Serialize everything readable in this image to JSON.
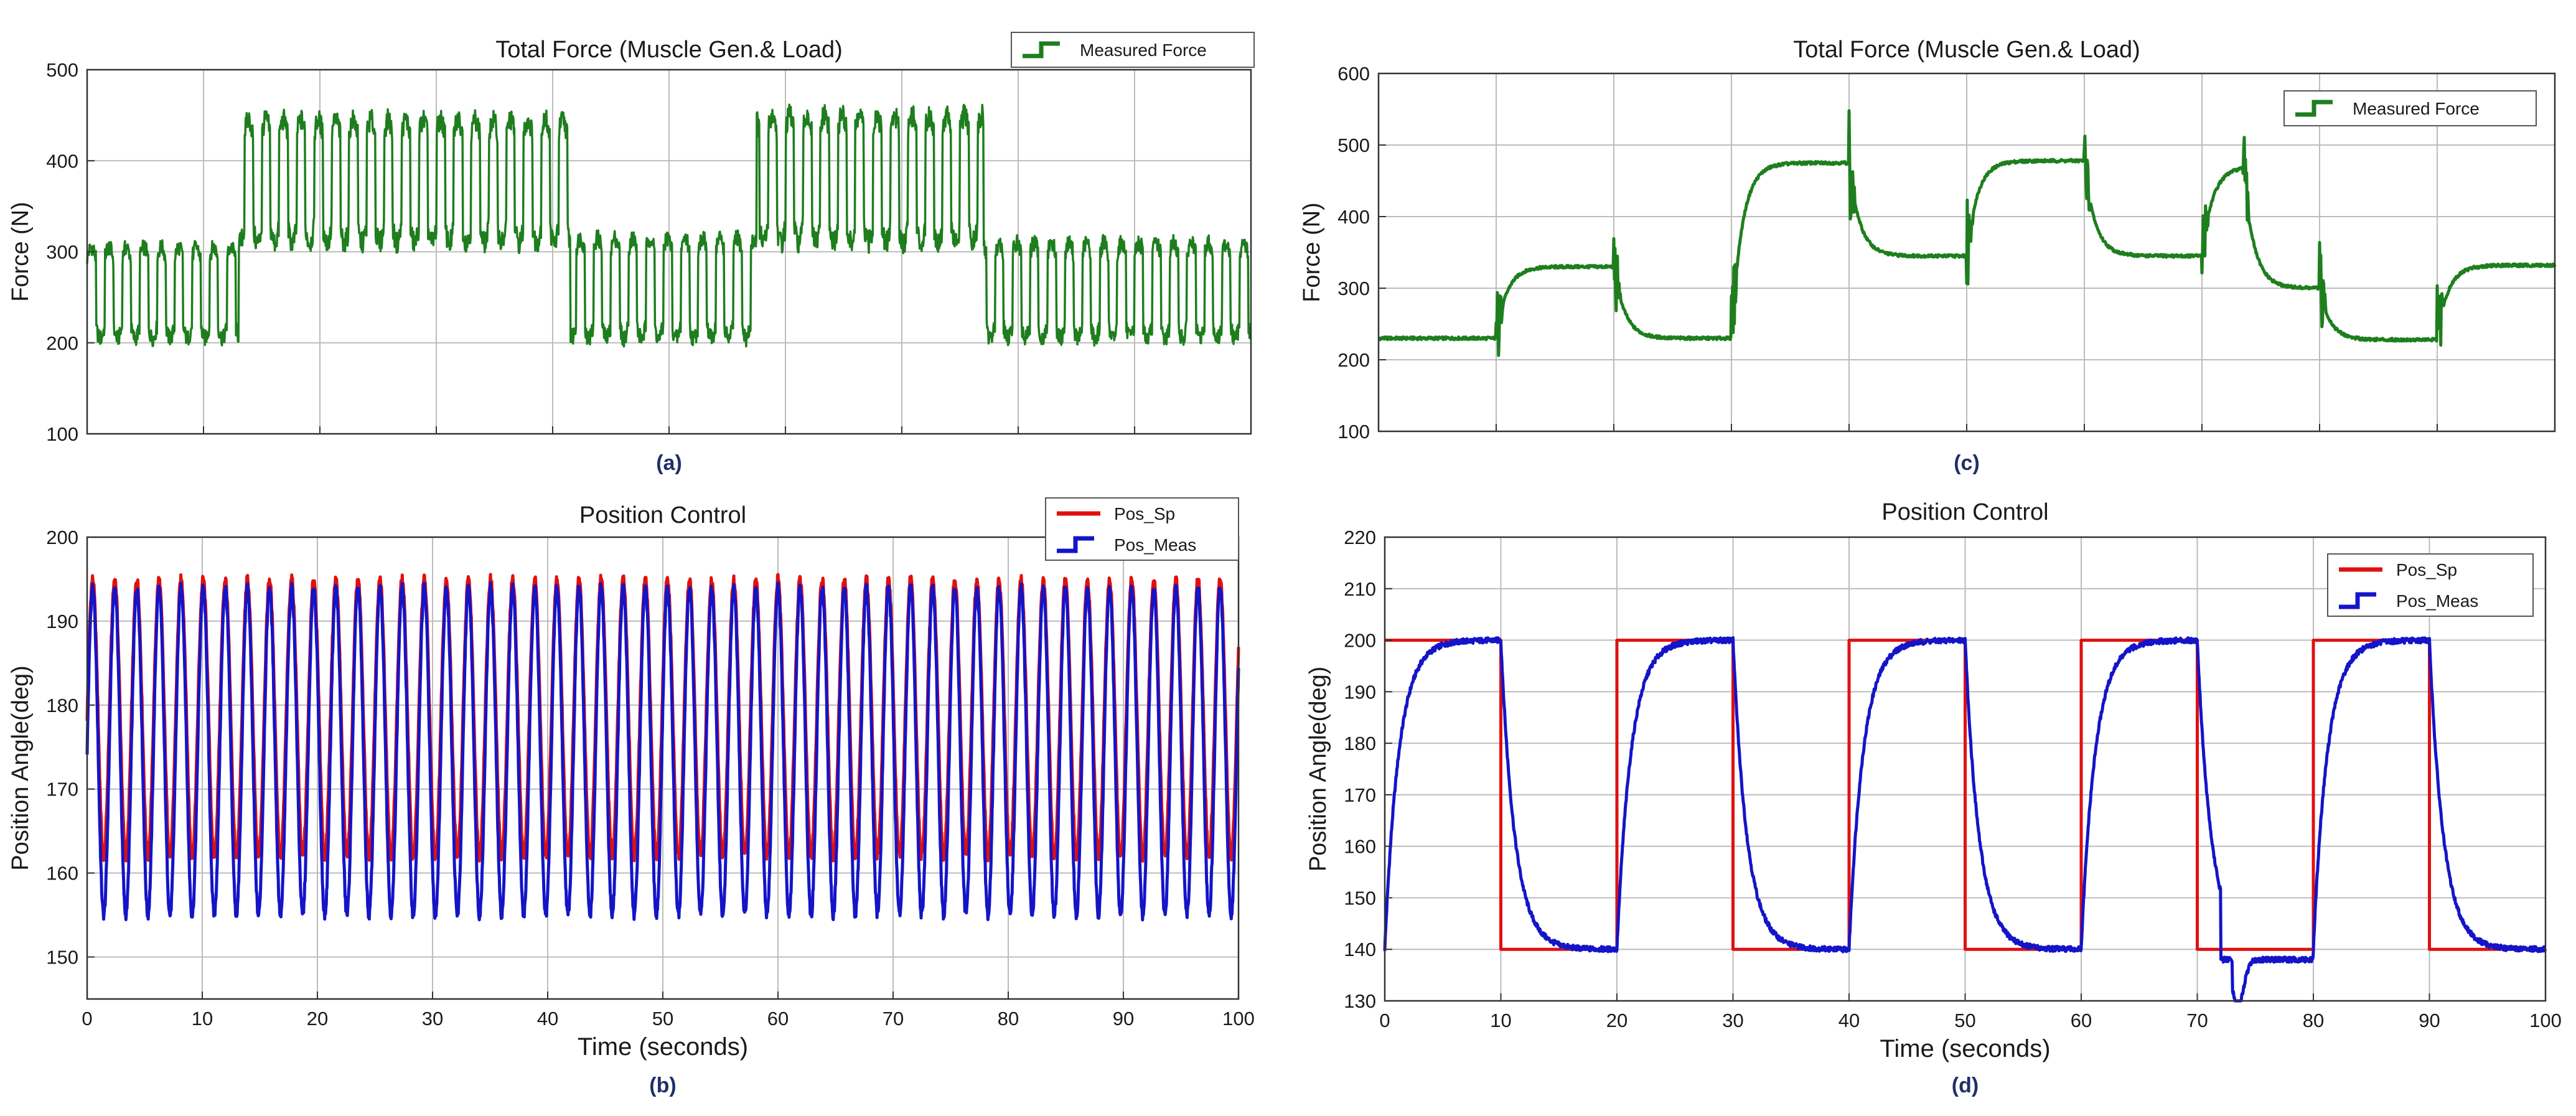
{
  "colors": {
    "force": "#1e7e1e",
    "setpoint": "#e01010",
    "measured": "#1414c8",
    "grid": "#bcbcbc",
    "axis": "#333333",
    "caption": "#1f2f6b"
  },
  "chart_data": [
    {
      "id": "a",
      "caption": "(a)",
      "type": "line",
      "title": "Total Force (Muscle Gen.& Load)",
      "xlabel": "",
      "ylabel": "Force (N)",
      "xlim": [
        0,
        100
      ],
      "ylim": [
        100,
        500
      ],
      "xticks": [
        0,
        10,
        20,
        30,
        40,
        50,
        60,
        70,
        80,
        90,
        100
      ],
      "yticks": [
        100,
        200,
        300,
        400,
        500
      ],
      "show_xtick_labels": false,
      "grid": true,
      "legend": "top-right",
      "series": [
        {
          "name": "Measured Force",
          "color_key": "force",
          "kind": "oscillating_segments",
          "osc_period": 1.5,
          "segments": [
            {
              "x0": 0,
              "x1": 13,
              "lo": 205,
              "hi": 305
            },
            {
              "x0": 13,
              "x1": 41.5,
              "lo": 310,
              "hi": 445
            },
            {
              "x0": 41.5,
              "x1": 57.5,
              "lo": 205,
              "hi": 315
            },
            {
              "x0": 57.5,
              "x1": 77,
              "lo": 310,
              "hi": 450
            },
            {
              "x0": 77,
              "x1": 100,
              "lo": 205,
              "hi": 310
            }
          ]
        }
      ]
    },
    {
      "id": "b",
      "caption": "(b)",
      "type": "line",
      "title": "Position Control",
      "xlabel": "Time (seconds)",
      "ylabel": "Position Angle(deg)",
      "xlim": [
        0,
        100
      ],
      "ylim": [
        145,
        200
      ],
      "xticks": [
        0,
        10,
        20,
        30,
        40,
        50,
        60,
        70,
        80,
        90,
        100
      ],
      "yticks": [
        150,
        160,
        170,
        180,
        190,
        200
      ],
      "show_xtick_labels": true,
      "grid": true,
      "legend": "top-right",
      "series": [
        {
          "name": "Pos_Sp",
          "color_key": "setpoint",
          "kind": "sine",
          "period": 1.92,
          "lo": 162,
          "hi": 195
        },
        {
          "name": "Pos_Meas",
          "color_key": "measured",
          "kind": "sine",
          "period": 1.92,
          "lo": 155,
          "hi": 194
        }
      ]
    },
    {
      "id": "c",
      "caption": "(c)",
      "type": "line",
      "title": "Total Force (Muscle Gen.& Load)",
      "xlabel": "",
      "ylabel": "Force (N)",
      "xlim": [
        0,
        100
      ],
      "ylim": [
        100,
        600
      ],
      "xticks": [
        0,
        10,
        20,
        30,
        40,
        50,
        60,
        70,
        80,
        90,
        100
      ],
      "yticks": [
        100,
        200,
        300,
        400,
        500,
        600
      ],
      "show_xtick_labels": false,
      "grid": true,
      "legend": "top-right",
      "series": [
        {
          "name": "Measured Force",
          "color_key": "force",
          "kind": "step_force",
          "breakpoints": [
            {
              "x": 0,
              "from": 230,
              "to": 230
            },
            {
              "x": 10,
              "from": 230,
              "to": 330
            },
            {
              "x": 20,
              "from": 335,
              "to": 230
            },
            {
              "x": 30,
              "from": 230,
              "to": 475
            },
            {
              "x": 40,
              "from": 475,
              "to": 345
            },
            {
              "x": 50,
              "from": 345,
              "to": 478
            },
            {
              "x": 60,
              "from": 478,
              "to": 345
            },
            {
              "x": 70,
              "from": 345,
              "to": 470
            },
            {
              "x": 73.5,
              "from": 470,
              "to": 300
            },
            {
              "x": 80,
              "from": 300,
              "to": 228
            },
            {
              "x": 90,
              "from": 228,
              "to": 332
            }
          ]
        }
      ]
    },
    {
      "id": "d",
      "caption": "(d)",
      "type": "line",
      "title": "Position Control",
      "xlabel": "Time (seconds)",
      "ylabel": "Position Angle(deg)",
      "xlim": [
        0,
        100
      ],
      "ylim": [
        130,
        220
      ],
      "xticks": [
        0,
        10,
        20,
        30,
        40,
        50,
        60,
        70,
        80,
        90,
        100
      ],
      "yticks": [
        130,
        140,
        150,
        160,
        170,
        180,
        190,
        200,
        210,
        220
      ],
      "show_xtick_labels": true,
      "grid": true,
      "legend": "top-right",
      "series": [
        {
          "name": "Pos_Sp",
          "color_key": "setpoint",
          "kind": "square",
          "period": 20,
          "lo": 140,
          "hi": 200
        },
        {
          "name": "Pos_Meas",
          "color_key": "measured",
          "kind": "square_response",
          "period": 20,
          "lo": 140,
          "hi": 200,
          "tau": 1.2,
          "min_dip": 131
        }
      ]
    }
  ]
}
